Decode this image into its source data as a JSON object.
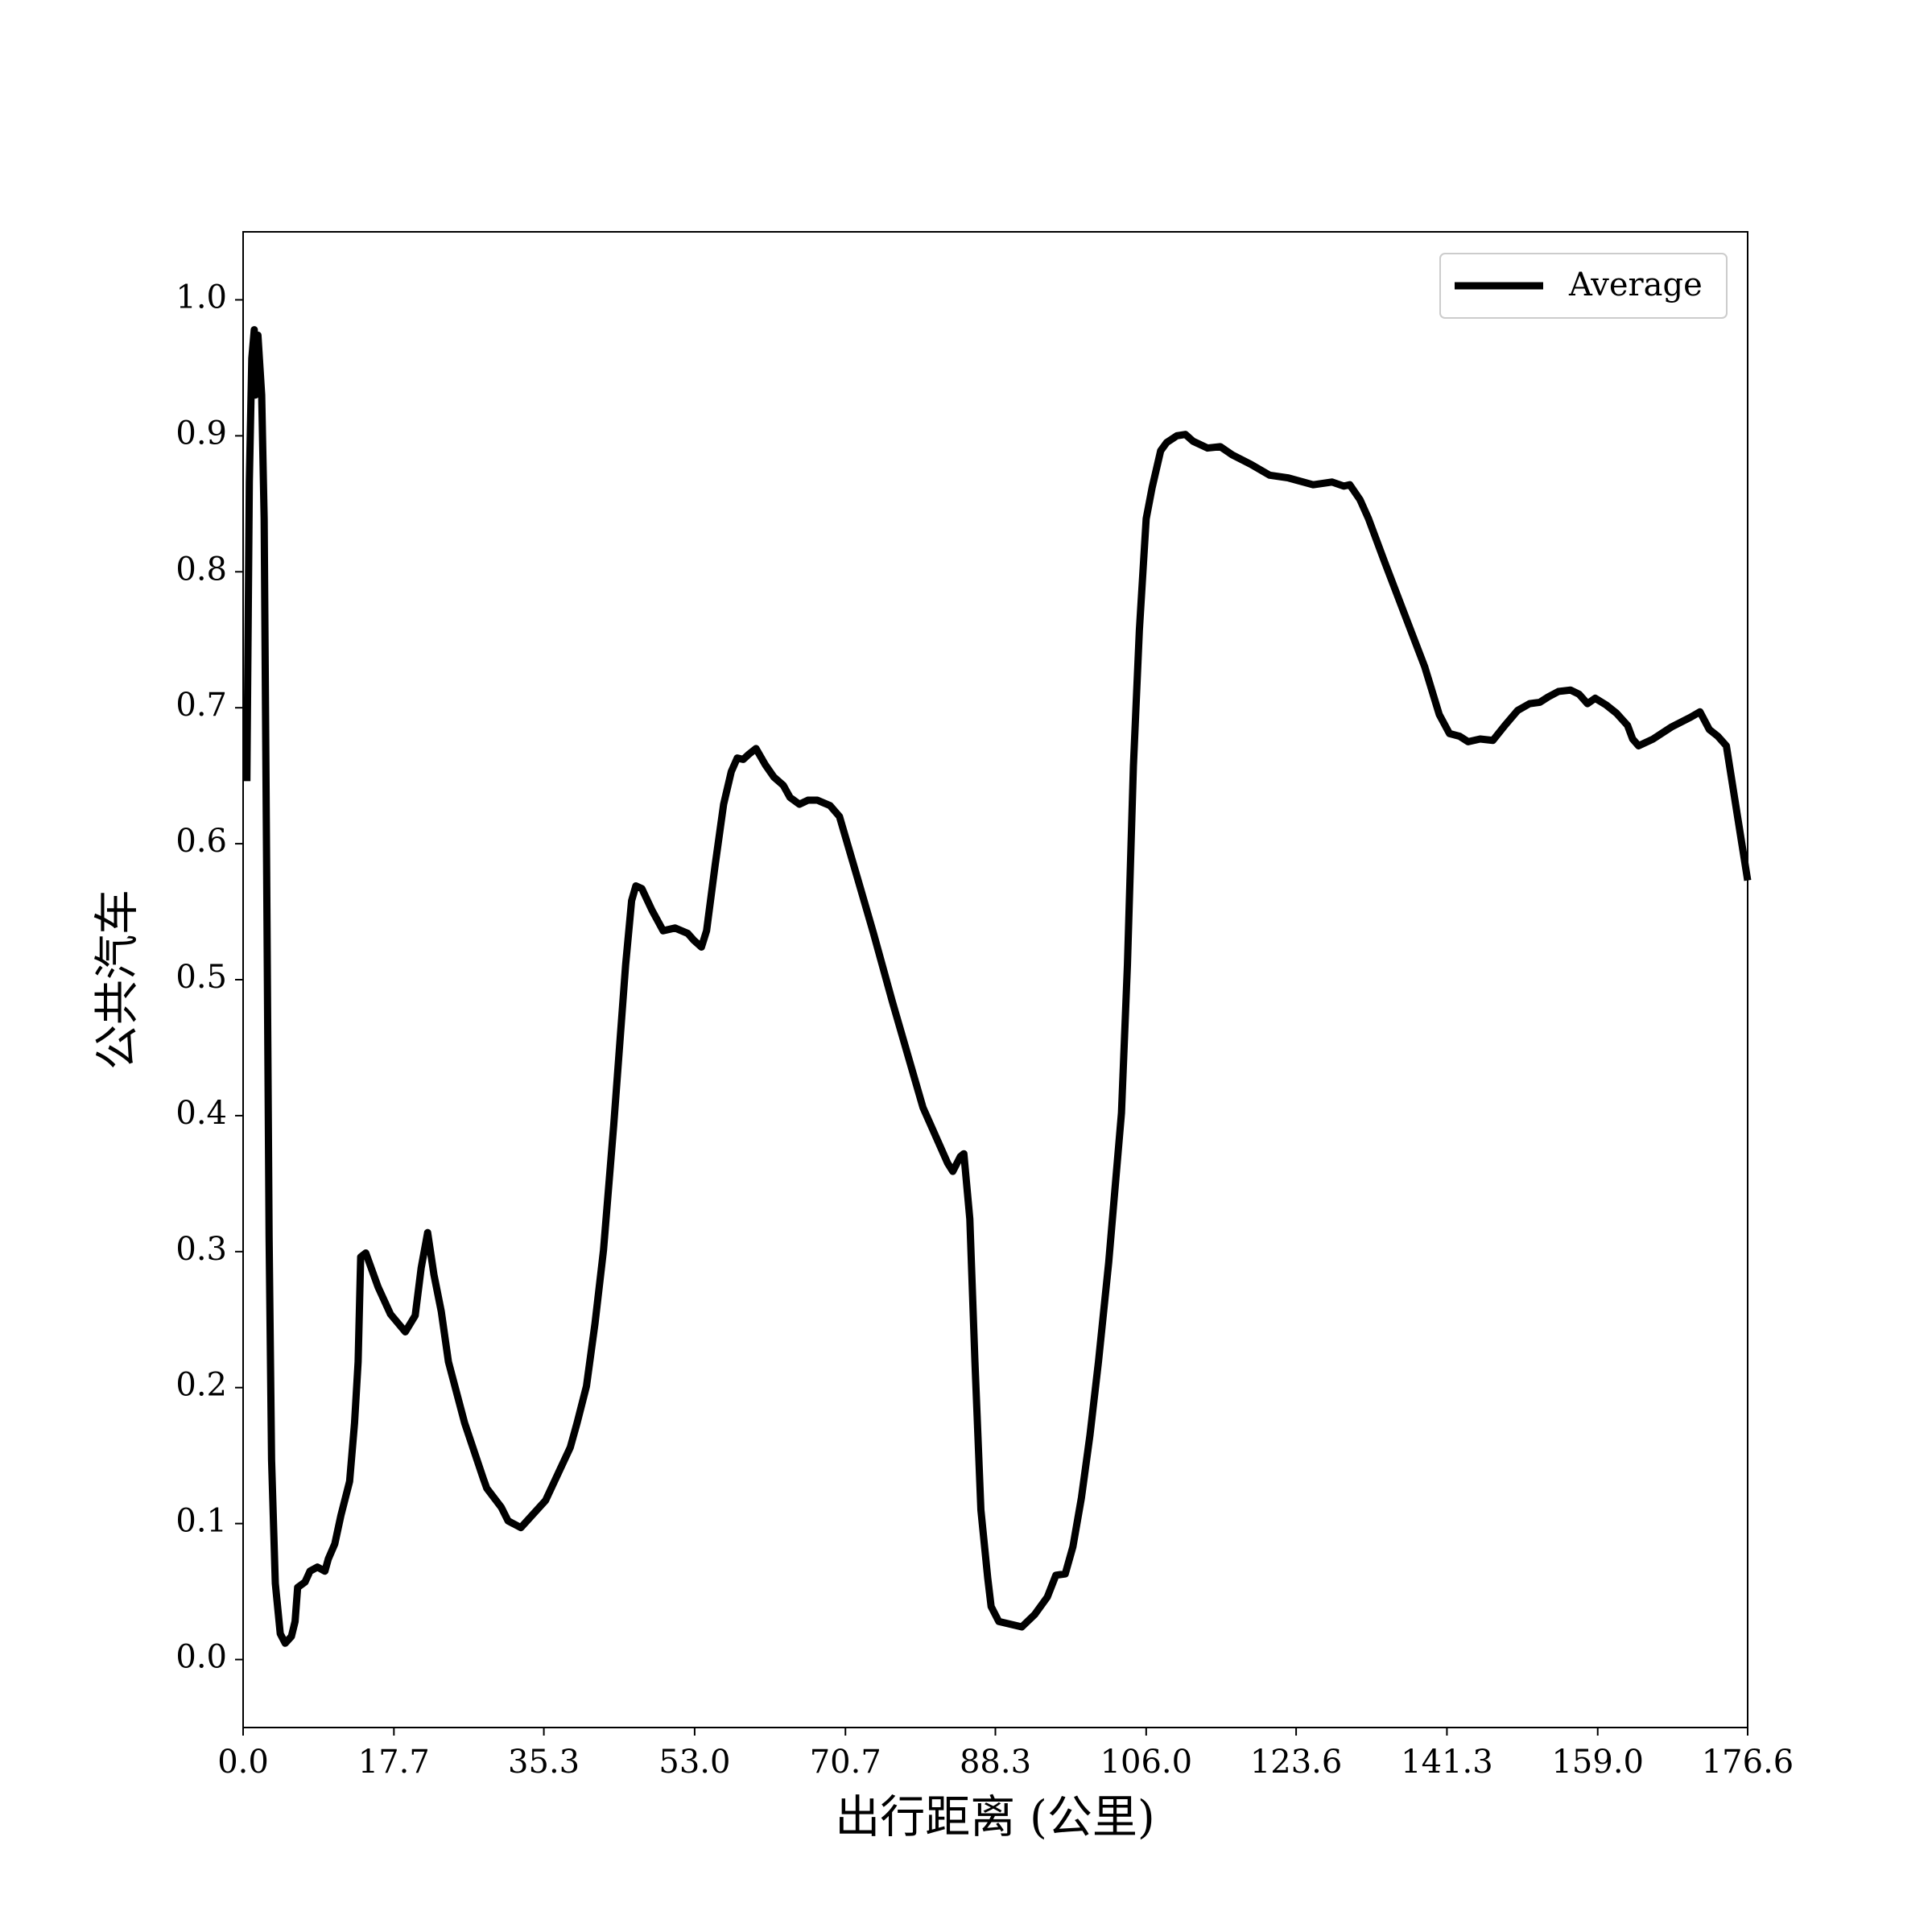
{
  "chart_data": {
    "type": "line",
    "x_label": "出行距离 (公里)",
    "y_label": "公共汽车",
    "x": [
      0.44,
      0.73,
      1.02,
      1.31,
      1.45,
      1.74,
      2.18,
      2.47,
      2.76,
      3.05,
      3.34,
      3.78,
      4.36,
      4.94,
      5.67,
      6.1,
      6.4,
      7.27,
      7.85,
      8.72,
      9.6,
      10.0,
      10.76,
      11.48,
      12.5,
      13.08,
      13.5,
      13.8,
      14.4,
      15.84,
      17.3,
      19.04,
      20.2,
      20.9,
      21.66,
      22.4,
      23.26,
      24.1,
      26.0,
      28.2,
      28.6,
      30.3,
      31.1,
      32.6,
      35.5,
      38.4,
      39.2,
      40.3,
      41.3,
      42.3,
      43.5,
      44.9,
      45.6,
      46.1,
      46.8,
      48.0,
      49.3,
      50.7,
      52.2,
      52.9,
      53.8,
      54.4,
      55.4,
      56.4,
      57.3,
      58.0,
      58.7,
      59.4,
      60.2,
      61.3,
      62.3,
      63.4,
      64.2,
      65.3,
      66.3,
      67.4,
      68.9,
      70.0,
      72.1,
      74.0,
      76.2,
      79.8,
      82.7,
      83.3,
      84.2,
      84.6,
      85.3,
      85.9,
      86.6,
      87.4,
      87.8,
      88.7,
      91.4,
      92.9,
      94.4,
      95.4,
      96.5,
      97.4,
      98.4,
      99.4,
      100.4,
      101.6,
      103.1,
      103.8,
      104.5,
      105.2,
      106.0,
      106.7,
      107.7,
      108.4,
      109.6,
      110.6,
      111.5,
      113.2,
      114.7,
      116.1,
      118.3,
      120.5,
      122.7,
      125.6,
      127.8,
      129.2,
      129.9,
      131.1,
      132.1,
      134.0,
      136.5,
      138.7,
      140.4,
      141.6,
      142.8,
      143.8,
      145.2,
      146.7,
      148.1,
      149.6,
      151.0,
      152.2,
      153.2,
      154.4,
      155.8,
      156.8,
      157.8,
      158.7,
      160.0,
      161.2,
      162.5,
      163.1,
      163.8,
      165.5,
      167.7,
      169.9,
      171.0,
      172.1,
      173.1,
      174.1,
      176.6
    ],
    "series": [
      {
        "name": "Average",
        "color": "#000000",
        "values": [
          0.646,
          0.866,
          0.957,
          0.978,
          0.93,
          0.974,
          0.93,
          0.839,
          0.584,
          0.311,
          0.147,
          0.056,
          0.019,
          0.012,
          0.017,
          0.028,
          0.053,
          0.057,
          0.065,
          0.068,
          0.065,
          0.074,
          0.085,
          0.106,
          0.131,
          0.174,
          0.219,
          0.296,
          0.299,
          0.274,
          0.254,
          0.241,
          0.253,
          0.288,
          0.314,
          0.283,
          0.256,
          0.219,
          0.174,
          0.133,
          0.126,
          0.112,
          0.102,
          0.097,
          0.117,
          0.156,
          0.174,
          0.201,
          0.247,
          0.301,
          0.393,
          0.511,
          0.558,
          0.569,
          0.567,
          0.551,
          0.536,
          0.538,
          0.534,
          0.529,
          0.524,
          0.536,
          0.584,
          0.629,
          0.653,
          0.663,
          0.662,
          0.666,
          0.67,
          0.658,
          0.649,
          0.643,
          0.634,
          0.629,
          0.632,
          0.632,
          0.628,
          0.62,
          0.575,
          0.534,
          0.484,
          0.406,
          0.365,
          0.359,
          0.37,
          0.372,
          0.324,
          0.219,
          0.11,
          0.06,
          0.039,
          0.028,
          0.024,
          0.033,
          0.046,
          0.062,
          0.063,
          0.083,
          0.119,
          0.165,
          0.219,
          0.292,
          0.402,
          0.511,
          0.657,
          0.757,
          0.839,
          0.862,
          0.889,
          0.895,
          0.9,
          0.901,
          0.896,
          0.891,
          0.892,
          0.886,
          0.879,
          0.871,
          0.869,
          0.864,
          0.866,
          0.863,
          0.864,
          0.853,
          0.839,
          0.807,
          0.766,
          0.73,
          0.695,
          0.681,
          0.679,
          0.675,
          0.677,
          0.676,
          0.687,
          0.698,
          0.703,
          0.704,
          0.708,
          0.712,
          0.713,
          0.71,
          0.703,
          0.707,
          0.702,
          0.696,
          0.687,
          0.677,
          0.672,
          0.677,
          0.686,
          0.693,
          0.697,
          0.684,
          0.679,
          0.672,
          0.573
        ]
      }
    ],
    "xlim": [
      0,
      176.6
    ],
    "ylim": [
      -0.05,
      1.05
    ],
    "xticks": [
      {
        "value": 0,
        "label": "0.0"
      },
      17.7,
      35.3,
      {
        "value": 53,
        "label": "53.0"
      },
      70.7,
      88.3,
      {
        "value": 106,
        "label": "106.0"
      },
      123.6,
      141.3,
      {
        "value": 159,
        "label": "159.0"
      },
      176.6
    ],
    "yticks": [
      {
        "value": 0,
        "label": "0.0"
      },
      0.1,
      0.2,
      0.3,
      0.4,
      0.5,
      0.6,
      0.7,
      0.8,
      0.9,
      {
        "value": 1,
        "label": "1.0"
      }
    ],
    "legend": "upper right"
  }
}
